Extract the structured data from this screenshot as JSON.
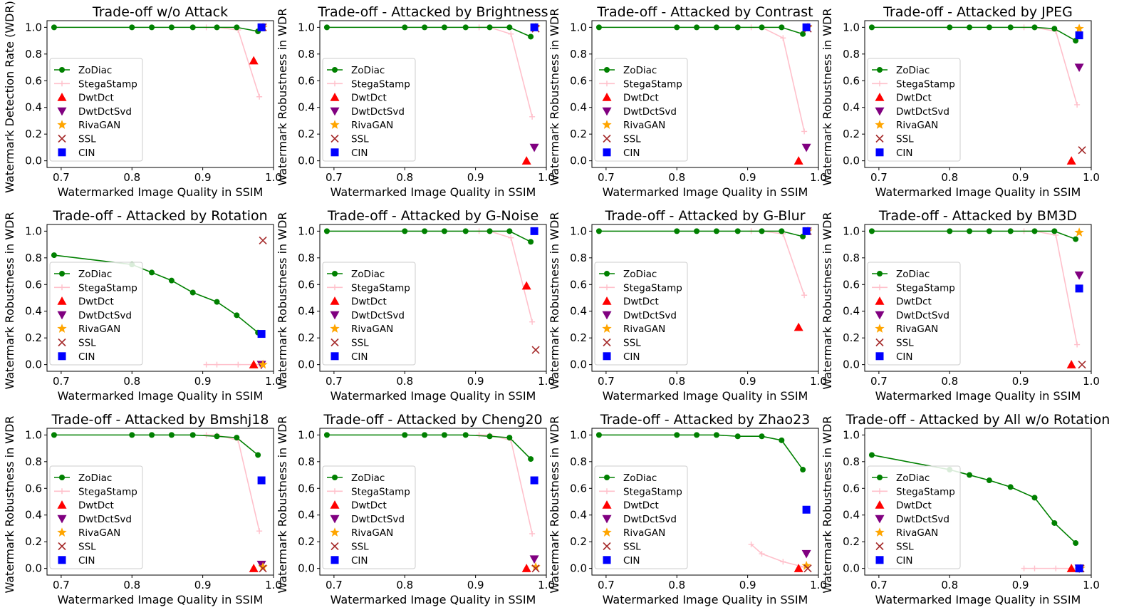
{
  "figure": {
    "x_label": "Watermarked Image Quality in SSIM",
    "x_ticks": [
      "0.7",
      "0.8",
      "0.9",
      "1.0"
    ],
    "y_ticks": [
      "0.0",
      "0.2",
      "0.4",
      "0.6",
      "0.8",
      "1.0"
    ],
    "legend": [
      {
        "name": "ZoDiac",
        "color": "#008000",
        "marker": "line-circle"
      },
      {
        "name": "StegaStamp",
        "color": "#ffc0cb",
        "marker": "line-plus"
      },
      {
        "name": "DwtDct",
        "color": "#ff0000",
        "marker": "triangle-up"
      },
      {
        "name": "DwtDctSvd",
        "color": "#800080",
        "marker": "triangle-down"
      },
      {
        "name": "RivaGAN",
        "color": "#ffa500",
        "marker": "star"
      },
      {
        "name": "SSL",
        "color": "#a52a2a",
        "marker": "x"
      },
      {
        "name": "CIN",
        "color": "#0000ff",
        "marker": "square"
      }
    ]
  },
  "chart_data": [
    {
      "type": "line",
      "title": "Trade-off w/o Attack",
      "xlabel": "Watermarked Image Quality in SSIM",
      "ylabel": "Watermark Detection Rate (WDR)",
      "xlim": [
        0.68,
        1.0
      ],
      "ylim": [
        -0.05,
        1.05
      ],
      "zodiac": {
        "x": [
          0.69,
          0.8,
          0.828,
          0.856,
          0.886,
          0.92,
          0.948,
          0.978
        ],
        "y": [
          1.0,
          1.0,
          1.0,
          1.0,
          1.0,
          1.0,
          1.0,
          0.97
        ]
      },
      "stegastamp": {
        "x": [
          0.905,
          0.92,
          0.95,
          0.98
        ],
        "y": [
          1.0,
          1.0,
          0.98,
          0.48
        ]
      },
      "markers": {
        "DwtDct": [
          0.972,
          0.75
        ],
        "DwtDctSvd": null,
        "RivaGAN": [
          0.985,
          1.0
        ],
        "SSL": [
          0.985,
          1.0
        ],
        "CIN": [
          0.983,
          1.0
        ]
      }
    },
    {
      "type": "line",
      "title": "Trade-off - Attacked by Brightness",
      "xlabel": "Watermarked Image Quality in SSIM",
      "ylabel": "Watermark Robustness in WDR",
      "xlim": [
        0.68,
        1.0
      ],
      "ylim": [
        -0.05,
        1.05
      ],
      "zodiac": {
        "x": [
          0.69,
          0.8,
          0.828,
          0.856,
          0.886,
          0.92,
          0.948,
          0.978
        ],
        "y": [
          1.0,
          1.0,
          1.0,
          1.0,
          1.0,
          1.0,
          1.0,
          0.93
        ]
      },
      "stegastamp": {
        "x": [
          0.905,
          0.92,
          0.95,
          0.98
        ],
        "y": [
          1.0,
          1.0,
          0.95,
          0.33
        ]
      },
      "markers": {
        "DwtDct": [
          0.972,
          0.0
        ],
        "DwtDctSvd": [
          0.983,
          0.1
        ],
        "RivaGAN": [
          0.985,
          1.0
        ],
        "SSL": [
          0.985,
          0.99
        ],
        "CIN": [
          0.983,
          1.0
        ]
      }
    },
    {
      "type": "line",
      "title": "Trade-off - Attacked by Contrast",
      "xlabel": "Watermarked Image Quality in SSIM",
      "ylabel": "Watermark Robustness in WDR",
      "xlim": [
        0.68,
        1.0
      ],
      "ylim": [
        -0.05,
        1.05
      ],
      "zodiac": {
        "x": [
          0.69,
          0.8,
          0.828,
          0.856,
          0.886,
          0.92,
          0.948,
          0.978
        ],
        "y": [
          1.0,
          1.0,
          1.0,
          1.0,
          1.0,
          1.0,
          1.0,
          0.95
        ]
      },
      "stegastamp": {
        "x": [
          0.905,
          0.92,
          0.95,
          0.98
        ],
        "y": [
          1.0,
          1.0,
          0.92,
          0.22
        ]
      },
      "markers": {
        "DwtDct": [
          0.972,
          0.0
        ],
        "DwtDctSvd": [
          0.983,
          0.1
        ],
        "RivaGAN": [
          0.985,
          1.0
        ],
        "SSL": [
          0.985,
          0.99
        ],
        "CIN": [
          0.983,
          1.0
        ]
      }
    },
    {
      "type": "line",
      "title": "Trade-off - Attacked by JPEG",
      "xlabel": "Watermarked Image Quality in SSIM",
      "ylabel": "Watermark Robustness in WDR",
      "xlim": [
        0.68,
        1.0
      ],
      "ylim": [
        -0.05,
        1.05
      ],
      "zodiac": {
        "x": [
          0.69,
          0.8,
          0.828,
          0.856,
          0.886,
          0.92,
          0.948,
          0.978
        ],
        "y": [
          1.0,
          1.0,
          1.0,
          1.0,
          1.0,
          1.0,
          0.99,
          0.9
        ]
      },
      "stegastamp": {
        "x": [
          0.905,
          0.92,
          0.95,
          0.98
        ],
        "y": [
          1.0,
          1.0,
          0.97,
          0.42
        ]
      },
      "markers": {
        "DwtDct": [
          0.972,
          0.0
        ],
        "DwtDctSvd": [
          0.983,
          0.7
        ],
        "RivaGAN": [
          0.983,
          0.99
        ],
        "SSL": [
          0.987,
          0.08
        ],
        "CIN": [
          0.983,
          0.94
        ]
      }
    },
    {
      "type": "line",
      "title": "Trade-off - Attacked by Rotation",
      "xlabel": "Watermarked Image Quality in SSIM",
      "ylabel": "Watermark Robustness in WDR",
      "xlim": [
        0.68,
        1.0
      ],
      "ylim": [
        -0.05,
        1.05
      ],
      "zodiac": {
        "x": [
          0.69,
          0.8,
          0.828,
          0.856,
          0.886,
          0.92,
          0.948,
          0.978
        ],
        "y": [
          0.82,
          0.75,
          0.69,
          0.63,
          0.54,
          0.47,
          0.37,
          0.24
        ]
      },
      "stegastamp": {
        "x": [
          0.905,
          0.92,
          0.95,
          0.98
        ],
        "y": [
          0.0,
          0.0,
          0.0,
          0.0
        ]
      },
      "markers": {
        "DwtDct": [
          0.972,
          0.0
        ],
        "DwtDctSvd": [
          0.983,
          0.0
        ],
        "RivaGAN": [
          0.985,
          0.0
        ],
        "SSL": [
          0.985,
          0.93
        ],
        "CIN": [
          0.983,
          0.23
        ]
      }
    },
    {
      "type": "line",
      "title": "Trade-off - Attacked by G-Noise",
      "xlabel": "Watermarked Image Quality in SSIM",
      "ylabel": "Watermark Robustness in WDR",
      "xlim": [
        0.68,
        1.0
      ],
      "ylim": [
        -0.05,
        1.05
      ],
      "zodiac": {
        "x": [
          0.69,
          0.8,
          0.828,
          0.856,
          0.886,
          0.92,
          0.948,
          0.978
        ],
        "y": [
          1.0,
          1.0,
          1.0,
          1.0,
          1.0,
          1.0,
          1.0,
          0.92
        ]
      },
      "stegastamp": {
        "x": [
          0.905,
          0.92,
          0.95,
          0.98
        ],
        "y": [
          1.0,
          1.0,
          0.95,
          0.32
        ]
      },
      "markers": {
        "DwtDct": [
          0.972,
          0.59
        ],
        "DwtDctSvd": null,
        "RivaGAN": null,
        "SSL": [
          0.985,
          0.11
        ],
        "CIN": [
          0.983,
          1.0
        ]
      }
    },
    {
      "type": "line",
      "title": "Trade-off - Attacked by G-Blur",
      "xlabel": "Watermarked Image Quality in SSIM",
      "ylabel": "Watermark Robustness in WDR",
      "xlim": [
        0.68,
        1.0
      ],
      "ylim": [
        -0.05,
        1.05
      ],
      "zodiac": {
        "x": [
          0.69,
          0.8,
          0.828,
          0.856,
          0.886,
          0.92,
          0.948,
          0.978
        ],
        "y": [
          1.0,
          1.0,
          1.0,
          1.0,
          1.0,
          1.0,
          1.0,
          0.96
        ]
      },
      "stegastamp": {
        "x": [
          0.905,
          0.92,
          0.95,
          0.98
        ],
        "y": [
          1.0,
          1.0,
          0.98,
          0.52
        ]
      },
      "markers": {
        "DwtDct": [
          0.972,
          0.28
        ],
        "DwtDctSvd": null,
        "RivaGAN": [
          0.985,
          1.0
        ],
        "SSL": [
          0.985,
          1.0
        ],
        "CIN": [
          0.983,
          1.0
        ]
      }
    },
    {
      "type": "line",
      "title": "Trade-off - Attacked by BM3D",
      "xlabel": "Watermarked Image Quality in SSIM",
      "ylabel": "Watermark Robustness in WDR",
      "xlim": [
        0.68,
        1.0
      ],
      "ylim": [
        -0.05,
        1.05
      ],
      "zodiac": {
        "x": [
          0.69,
          0.8,
          0.828,
          0.856,
          0.886,
          0.92,
          0.948,
          0.978
        ],
        "y": [
          1.0,
          1.0,
          1.0,
          1.0,
          1.0,
          1.0,
          1.0,
          0.94
        ]
      },
      "stegastamp": {
        "x": [
          0.905,
          0.92,
          0.95,
          0.98
        ],
        "y": [
          1.0,
          1.0,
          0.97,
          0.15
        ]
      },
      "markers": {
        "DwtDct": [
          0.972,
          0.0
        ],
        "DwtDctSvd": [
          0.983,
          0.67
        ],
        "RivaGAN": [
          0.983,
          0.99
        ],
        "SSL": [
          0.987,
          0.0
        ],
        "CIN": [
          0.983,
          0.57
        ]
      }
    },
    {
      "type": "line",
      "title": "Trade-off - Attacked by Bmshj18",
      "xlabel": "Watermarked Image Quality in SSIM",
      "ylabel": "Watermark Robustness in WDR",
      "xlim": [
        0.68,
        1.0
      ],
      "ylim": [
        -0.05,
        1.05
      ],
      "zodiac": {
        "x": [
          0.69,
          0.8,
          0.828,
          0.856,
          0.886,
          0.92,
          0.948,
          0.978
        ],
        "y": [
          1.0,
          1.0,
          1.0,
          1.0,
          1.0,
          0.99,
          0.98,
          0.85
        ]
      },
      "stegastamp": {
        "x": [
          0.905,
          0.92,
          0.95,
          0.98
        ],
        "y": [
          1.0,
          1.0,
          0.96,
          0.28
        ]
      },
      "markers": {
        "DwtDct": [
          0.972,
          0.0
        ],
        "DwtDctSvd": [
          0.983,
          0.03
        ],
        "RivaGAN": [
          0.985,
          0.01
        ],
        "SSL": [
          0.985,
          0.0
        ],
        "CIN": [
          0.983,
          0.66
        ]
      }
    },
    {
      "type": "line",
      "title": "Trade-off - Attacked by Cheng20",
      "xlabel": "Watermarked Image Quality in SSIM",
      "ylabel": "Watermark Robustness in WDR",
      "xlim": [
        0.68,
        1.0
      ],
      "ylim": [
        -0.05,
        1.05
      ],
      "zodiac": {
        "x": [
          0.69,
          0.8,
          0.828,
          0.856,
          0.886,
          0.92,
          0.948,
          0.978
        ],
        "y": [
          1.0,
          1.0,
          1.0,
          1.0,
          1.0,
          0.99,
          0.98,
          0.82
        ]
      },
      "stegastamp": {
        "x": [
          0.905,
          0.92,
          0.95,
          0.98
        ],
        "y": [
          1.0,
          1.0,
          0.96,
          0.26
        ]
      },
      "markers": {
        "DwtDct": [
          0.972,
          0.0
        ],
        "DwtDctSvd": [
          0.983,
          0.07
        ],
        "RivaGAN": [
          0.985,
          0.01
        ],
        "SSL": [
          0.985,
          0.0
        ],
        "CIN": [
          0.983,
          0.66
        ]
      }
    },
    {
      "type": "line",
      "title": "Trade-off - Attacked by Zhao23",
      "xlabel": "Watermarked Image Quality in SSIM",
      "ylabel": "Watermark Robustness in WDR",
      "xlim": [
        0.68,
        1.0
      ],
      "ylim": [
        -0.05,
        1.05
      ],
      "zodiac": {
        "x": [
          0.69,
          0.8,
          0.828,
          0.856,
          0.886,
          0.92,
          0.948,
          0.978
        ],
        "y": [
          1.0,
          1.0,
          1.0,
          1.0,
          0.99,
          0.99,
          0.96,
          0.74
        ]
      },
      "stegastamp": {
        "x": [
          0.905,
          0.92,
          0.95,
          0.98
        ],
        "y": [
          0.18,
          0.11,
          0.05,
          0.01
        ]
      },
      "markers": {
        "DwtDct": [
          0.972,
          0.0
        ],
        "DwtDctSvd": [
          0.983,
          0.11
        ],
        "RivaGAN": [
          0.983,
          0.02
        ],
        "SSL": [
          0.985,
          0.0
        ],
        "CIN": [
          0.983,
          0.44
        ]
      }
    },
    {
      "type": "line",
      "title": "Trade-off - Attacked by All w/o Rotation",
      "xlabel": "Watermarked Image Quality in SSIM",
      "ylabel": "Watermark Robustness in WDR",
      "xlim": [
        0.68,
        1.0
      ],
      "ylim": [
        -0.05,
        1.05
      ],
      "zodiac": {
        "x": [
          0.69,
          0.8,
          0.828,
          0.856,
          0.886,
          0.92,
          0.948,
          0.978
        ],
        "y": [
          0.85,
          0.74,
          0.7,
          0.66,
          0.61,
          0.53,
          0.34,
          0.19
        ]
      },
      "stegastamp": {
        "x": [
          0.905,
          0.92,
          0.95,
          0.98
        ],
        "y": [
          0.0,
          0.0,
          0.0,
          0.0
        ]
      },
      "markers": {
        "DwtDct": [
          0.972,
          0.0
        ],
        "DwtDctSvd": [
          0.983,
          0.0
        ],
        "RivaGAN": [
          0.985,
          0.0
        ],
        "SSL": [
          0.985,
          0.0
        ],
        "CIN": [
          0.983,
          0.0
        ]
      }
    }
  ]
}
